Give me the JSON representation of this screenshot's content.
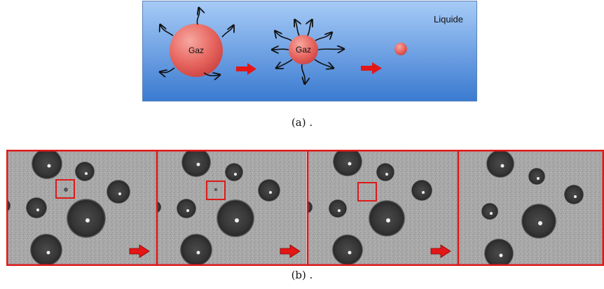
{
  "schematic": {
    "liquid_label": "Liquide",
    "bubble_large_label": "Gaz",
    "bubble_medium_label": "Gaz",
    "colors": {
      "liquid_top": "#9dc3f4",
      "liquid_bottom": "#3f7fd0",
      "bubble": "#e35b5b",
      "arrow": "#e41616"
    }
  },
  "captions": {
    "a": "(a) .",
    "b": "(b) ."
  },
  "photos": {
    "panel_count": 4,
    "frame_color": "#dd1a1a",
    "background": "#a9a9a9"
  }
}
